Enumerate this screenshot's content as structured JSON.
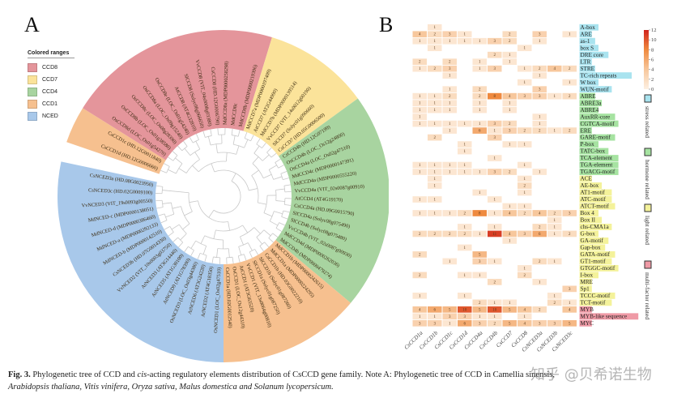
{
  "panel_a": {
    "letter": "A",
    "legend_title": "Colored ranges",
    "ranges": [
      {
        "name": "CCD8",
        "color": "#e4959b"
      },
      {
        "name": "CCD7",
        "color": "#fbe39a"
      },
      {
        "name": "CCD4",
        "color": "#a8d4a0"
      },
      {
        "name": "CCD1",
        "color": "#f6c08f"
      },
      {
        "name": "NCED",
        "color": "#a8c8ea"
      }
    ],
    "clades": [
      {
        "range": "CCD1",
        "labels": [
          "CsCCD1d (HD.12G0006660)",
          "CsCCD1c (HD.12G0011840)"
        ]
      },
      {
        "range": "CCD8",
        "labels": [
          "OsCCD8d (LOC_Os01g54270)",
          "OsCCD8b (LOC_Os01g38580)",
          "OsCCD8c (LOC_Os08g28390)",
          "OsCCD8a (LOC_Os09g15240)",
          "OsCCD8e (LOC_Os01g54240)",
          "AtCCD8 (AT4G32810)",
          "SlCCD8 (Solyc08g066650)",
          "VvCCD8 (VIT_04s0008g03380)",
          "CsCCD8 (HD.12G0006790)",
          "MdCCD8a (MDP0000258298)",
          "MdCCD8c",
          "MdCCD8b (MDP0000219396)"
        ]
      },
      {
        "range": "CCD7",
        "labels": [
          "MdCCD7a (MDP0000197409)",
          "AtCCD7 (AT2G44990)",
          "MdCCD7b (MDP0000139514)",
          "VvCCD7 (VIT_14s0012g00190)",
          "SlCCD7 (Solyc01g090660)",
          "CsCCD7 (HD.05G0006500)"
        ]
      },
      {
        "range": "CCD4",
        "labels": [
          "CsCCD4b (HD.12G07199)",
          "OsCCD4b (LOC_Os12g24800)",
          "OsCCD4a (LOC_Os02g47510)",
          "MdCCD4c (MDP0000147391)",
          "MdCCD4a (MDP0000555220)",
          "VvCCD4a (VIT_02s0087g00910)",
          "AtCCD4 (AT4G19170)",
          "CsCCD4a (HD.09G0015790)",
          "SlCCD4a (Solyc08g075490)",
          "SlCCD4b (Solyc08g075480)",
          "VvCCD4b (VIT_02s0087g00930)",
          "MdCCD4d (MDP0000262036)",
          "MdCCD4b (MDP0000479274)"
        ]
      },
      {
        "range": "CCD1",
        "labels": [
          "MdCCD1b (MDP0000242615)",
          "MdCCD1a (MDP0000224295)",
          "CsCCD1b (HD.03G0022210)",
          "SlCCD1b (Solyc01g087260)",
          "SlCCD1a (Solyc01g087250)",
          "VvCCD1 (VIT_13s0064g00810)",
          "AtCCD1 (AT3G63520)",
          "OsCCD1 (LOC_Os12g44310)",
          "CsCCD1a (HD.02G0012540)"
        ]
      },
      {
        "range": "NCED",
        "labels": [
          "OsNCED1 (LOC_Os02g47510)",
          "AtNCED2 (AT4G18350)",
          "AtNCED6 (AT3G24220)",
          "OsNCED3 (LOC_Os03g44380)",
          "AtNCED9 (AT1G78390)",
          "AtNCED5 (AT1G30100)",
          "AtNCED3 (AT3G14440)",
          "VvNCED2 (VIT_10s0003g03750)",
          "CsNCED3b (HD.07G0014330)",
          "MdNCED-b (MDP0000142510)",
          "MdNCED-a (MDP0000292133)",
          "MdNCED-d (MDP0000386460)",
          "MdNCED-c (MDP0000138051)",
          "VvNCED3 (VIT_19s0093g00550)",
          "CsNCED3c (HD.02G0009100)",
          "CsNCED3a (HD.08G0023950)"
        ]
      }
    ]
  },
  "panel_b": {
    "letter": "B",
    "columns": [
      "CsCCD1a",
      "CsCCD1b",
      "CsCCD1c",
      "CsCCD1d",
      "CsCCD4a",
      "CsCCD4b",
      "CsCCD7",
      "CsCCD8",
      "CsNCED3a",
      "CsNCED3b",
      "CsNCED3c"
    ],
    "categories": [
      {
        "name": "stress related",
        "color": "#a9e3ef"
      },
      {
        "name": "hormone related",
        "color": "#a6e3a1"
      },
      {
        "name": "light related",
        "color": "#f4f29a"
      },
      {
        "name": "multi-factor related",
        "color": "#ef9aa6"
      }
    ],
    "colorbar": {
      "min": 0,
      "max": 12,
      "ticks": [
        "12",
        "10",
        "8",
        "6",
        "4",
        "2",
        "0"
      ],
      "colors": [
        "#fdf0e2",
        "#f7c79c",
        "#ef8a3f",
        "#d0231c"
      ]
    },
    "rows": [
      {
        "name": "A-box",
        "cat": 0,
        "v": [
          0,
          1,
          0,
          0,
          0,
          0,
          0,
          0,
          0,
          0,
          0
        ]
      },
      {
        "name": "ARE",
        "cat": 0,
        "v": [
          4,
          2,
          3,
          1,
          0,
          0,
          2,
          0,
          3,
          0,
          1
        ]
      },
      {
        "name": "as-1",
        "cat": 0,
        "v": [
          1,
          1,
          1,
          1,
          1,
          3,
          2,
          0,
          1,
          0,
          0
        ]
      },
      {
        "name": "box S",
        "cat": 0,
        "v": [
          0,
          1,
          0,
          0,
          0,
          0,
          0,
          1,
          0,
          0,
          0
        ]
      },
      {
        "name": "DRE core",
        "cat": 0,
        "v": [
          0,
          0,
          0,
          0,
          0,
          2,
          1,
          0,
          0,
          0,
          0
        ]
      },
      {
        "name": "LTR",
        "cat": 0,
        "v": [
          2,
          0,
          2,
          0,
          1,
          0,
          1,
          0,
          0,
          0,
          0
        ]
      },
      {
        "name": "STRE",
        "cat": 0,
        "v": [
          1,
          2,
          3,
          0,
          1,
          3,
          0,
          1,
          2,
          4,
          2
        ]
      },
      {
        "name": "TC-rich repeats",
        "cat": 0,
        "v": [
          0,
          0,
          1,
          0,
          0,
          0,
          0,
          0,
          1,
          0,
          0
        ]
      },
      {
        "name": "W box",
        "cat": 0,
        "v": [
          0,
          0,
          0,
          0,
          0,
          0,
          0,
          1,
          0,
          0,
          1
        ]
      },
      {
        "name": "WUN-motif",
        "cat": 0,
        "v": [
          0,
          0,
          1,
          0,
          2,
          0,
          0,
          0,
          3,
          0,
          0
        ]
      },
      {
        "name": "ABRE",
        "cat": 1,
        "v": [
          1,
          1,
          2,
          0,
          2,
          8,
          4,
          3,
          3,
          1,
          2
        ]
      },
      {
        "name": "ABRE3a",
        "cat": 1,
        "v": [
          1,
          1,
          1,
          0,
          1,
          0,
          1,
          0,
          0,
          0,
          0
        ]
      },
      {
        "name": "ABRE4",
        "cat": 1,
        "v": [
          1,
          1,
          1,
          0,
          1,
          0,
          1,
          0,
          0,
          0,
          0
        ]
      },
      {
        "name": "AuxRR-core",
        "cat": 1,
        "v": [
          1,
          0,
          0,
          0,
          0,
          0,
          0,
          0,
          1,
          0,
          0
        ]
      },
      {
        "name": "CGTCA-motif",
        "cat": 1,
        "v": [
          1,
          1,
          1,
          1,
          1,
          3,
          2,
          0,
          1,
          0,
          0
        ]
      },
      {
        "name": "ERE",
        "cat": 1,
        "v": [
          0,
          0,
          1,
          0,
          6,
          1,
          3,
          2,
          2,
          1,
          2
        ]
      },
      {
        "name": "GARE-motif",
        "cat": 1,
        "v": [
          0,
          2,
          0,
          0,
          0,
          3,
          0,
          0,
          0,
          0,
          0
        ]
      },
      {
        "name": "P-box",
        "cat": 1,
        "v": [
          0,
          0,
          0,
          1,
          0,
          0,
          1,
          1,
          0,
          0,
          0
        ]
      },
      {
        "name": "TATC-box",
        "cat": 1,
        "v": [
          0,
          0,
          0,
          1,
          0,
          0,
          0,
          0,
          0,
          0,
          0
        ]
      },
      {
        "name": "TCA-element",
        "cat": 1,
        "v": [
          0,
          0,
          0,
          0,
          0,
          1,
          0,
          0,
          0,
          0,
          0
        ]
      },
      {
        "name": "TGA-element",
        "cat": 1,
        "v": [
          1,
          1,
          1,
          1,
          0,
          0,
          0,
          1,
          0,
          0,
          0
        ]
      },
      {
        "name": "TGACG-motif",
        "cat": 1,
        "v": [
          1,
          1,
          1,
          1,
          1,
          3,
          2,
          0,
          1,
          0,
          0
        ]
      },
      {
        "name": "ACE",
        "cat": 2,
        "v": [
          0,
          1,
          0,
          0,
          0,
          0,
          0,
          1,
          0,
          0,
          0
        ]
      },
      {
        "name": "AE-box",
        "cat": 2,
        "v": [
          0,
          1,
          0,
          0,
          0,
          0,
          0,
          2,
          0,
          0,
          0
        ]
      },
      {
        "name": "AT1-motif",
        "cat": 2,
        "v": [
          0,
          0,
          0,
          0,
          1,
          0,
          0,
          1,
          0,
          0,
          0
        ]
      },
      {
        "name": "ATC-motif",
        "cat": 2,
        "v": [
          1,
          1,
          0,
          0,
          0,
          1,
          0,
          0,
          0,
          0,
          0
        ]
      },
      {
        "name": "ATCT-motif",
        "cat": 2,
        "v": [
          0,
          0,
          0,
          0,
          0,
          0,
          1,
          1,
          0,
          0,
          0
        ]
      },
      {
        "name": "Box 4",
        "cat": 2,
        "v": [
          1,
          1,
          1,
          2,
          8,
          1,
          4,
          2,
          4,
          2,
          3
        ]
      },
      {
        "name": "Box II",
        "cat": 2,
        "v": [
          0,
          0,
          0,
          0,
          0,
          0,
          0,
          0,
          0,
          1,
          0
        ]
      },
      {
        "name": "chs-CMA1a",
        "cat": 2,
        "v": [
          0,
          0,
          0,
          1,
          0,
          1,
          0,
          0,
          2,
          1,
          0
        ]
      },
      {
        "name": "G-box",
        "cat": 2,
        "v": [
          2,
          2,
          2,
          2,
          1,
          11,
          4,
          3,
          6,
          1,
          2
        ]
      },
      {
        "name": "GA-motif",
        "cat": 2,
        "v": [
          0,
          0,
          0,
          0,
          0,
          0,
          1,
          0,
          0,
          0,
          0
        ]
      },
      {
        "name": "Gap-box",
        "cat": 2,
        "v": [
          0,
          0,
          0,
          1,
          0,
          0,
          0,
          0,
          0,
          0,
          0
        ]
      },
      {
        "name": "GATA-motif",
        "cat": 2,
        "v": [
          2,
          0,
          0,
          0,
          5,
          0,
          0,
          0,
          0,
          0,
          0
        ]
      },
      {
        "name": "GT1-motif",
        "cat": 2,
        "v": [
          0,
          0,
          1,
          0,
          3,
          1,
          0,
          0,
          2,
          1,
          0
        ]
      },
      {
        "name": "GTGGC-motif",
        "cat": 2,
        "v": [
          0,
          0,
          0,
          0,
          0,
          0,
          0,
          1,
          0,
          0,
          0
        ]
      },
      {
        "name": "I-box",
        "cat": 2,
        "v": [
          2,
          0,
          0,
          1,
          1,
          0,
          0,
          2,
          0,
          0,
          0
        ]
      },
      {
        "name": "MRE",
        "cat": 2,
        "v": [
          0,
          0,
          0,
          0,
          0,
          2,
          0,
          0,
          1,
          0,
          0
        ]
      },
      {
        "name": "Sp1",
        "cat": 2,
        "v": [
          0,
          0,
          0,
          0,
          0,
          0,
          0,
          0,
          0,
          0,
          3
        ]
      },
      {
        "name": "TCCC-motif",
        "cat": 2,
        "v": [
          1,
          0,
          0,
          1,
          0,
          0,
          0,
          0,
          0,
          1,
          0
        ]
      },
      {
        "name": "TCT-motif",
        "cat": 2,
        "v": [
          0,
          0,
          0,
          0,
          2,
          1,
          1,
          0,
          0,
          2,
          1
        ]
      },
      {
        "name": "MYB",
        "cat": 3,
        "v": [
          4,
          6,
          5,
          10,
          5,
          10,
          5,
          4,
          2,
          0,
          4
        ]
      },
      {
        "name": "MYB-like sequence",
        "cat": 3,
        "v": [
          1,
          1,
          3,
          3,
          1,
          1,
          0,
          1,
          0,
          0,
          0
        ]
      },
      {
        "name": "MYC",
        "cat": 3,
        "v": [
          3,
          3,
          1,
          6,
          3,
          2,
          5,
          4,
          3,
          3,
          5
        ]
      }
    ]
  },
  "caption": {
    "fig": "Fig. 3.",
    "text1": " Phylogenetic tree of CCD and ",
    "cis": "cis",
    "text2": "-acting regulatory elements distribution of CsCCD gene family. Note A: Phylogenetic tree of CCD in Camellia sinensis,",
    "line2": "Arabidopsis thaliana, Vitis vinifera, Oryza sativa, Malus domestica and Solanum lycopersicum."
  },
  "watermark": "知乎 @贝希诺生物"
}
